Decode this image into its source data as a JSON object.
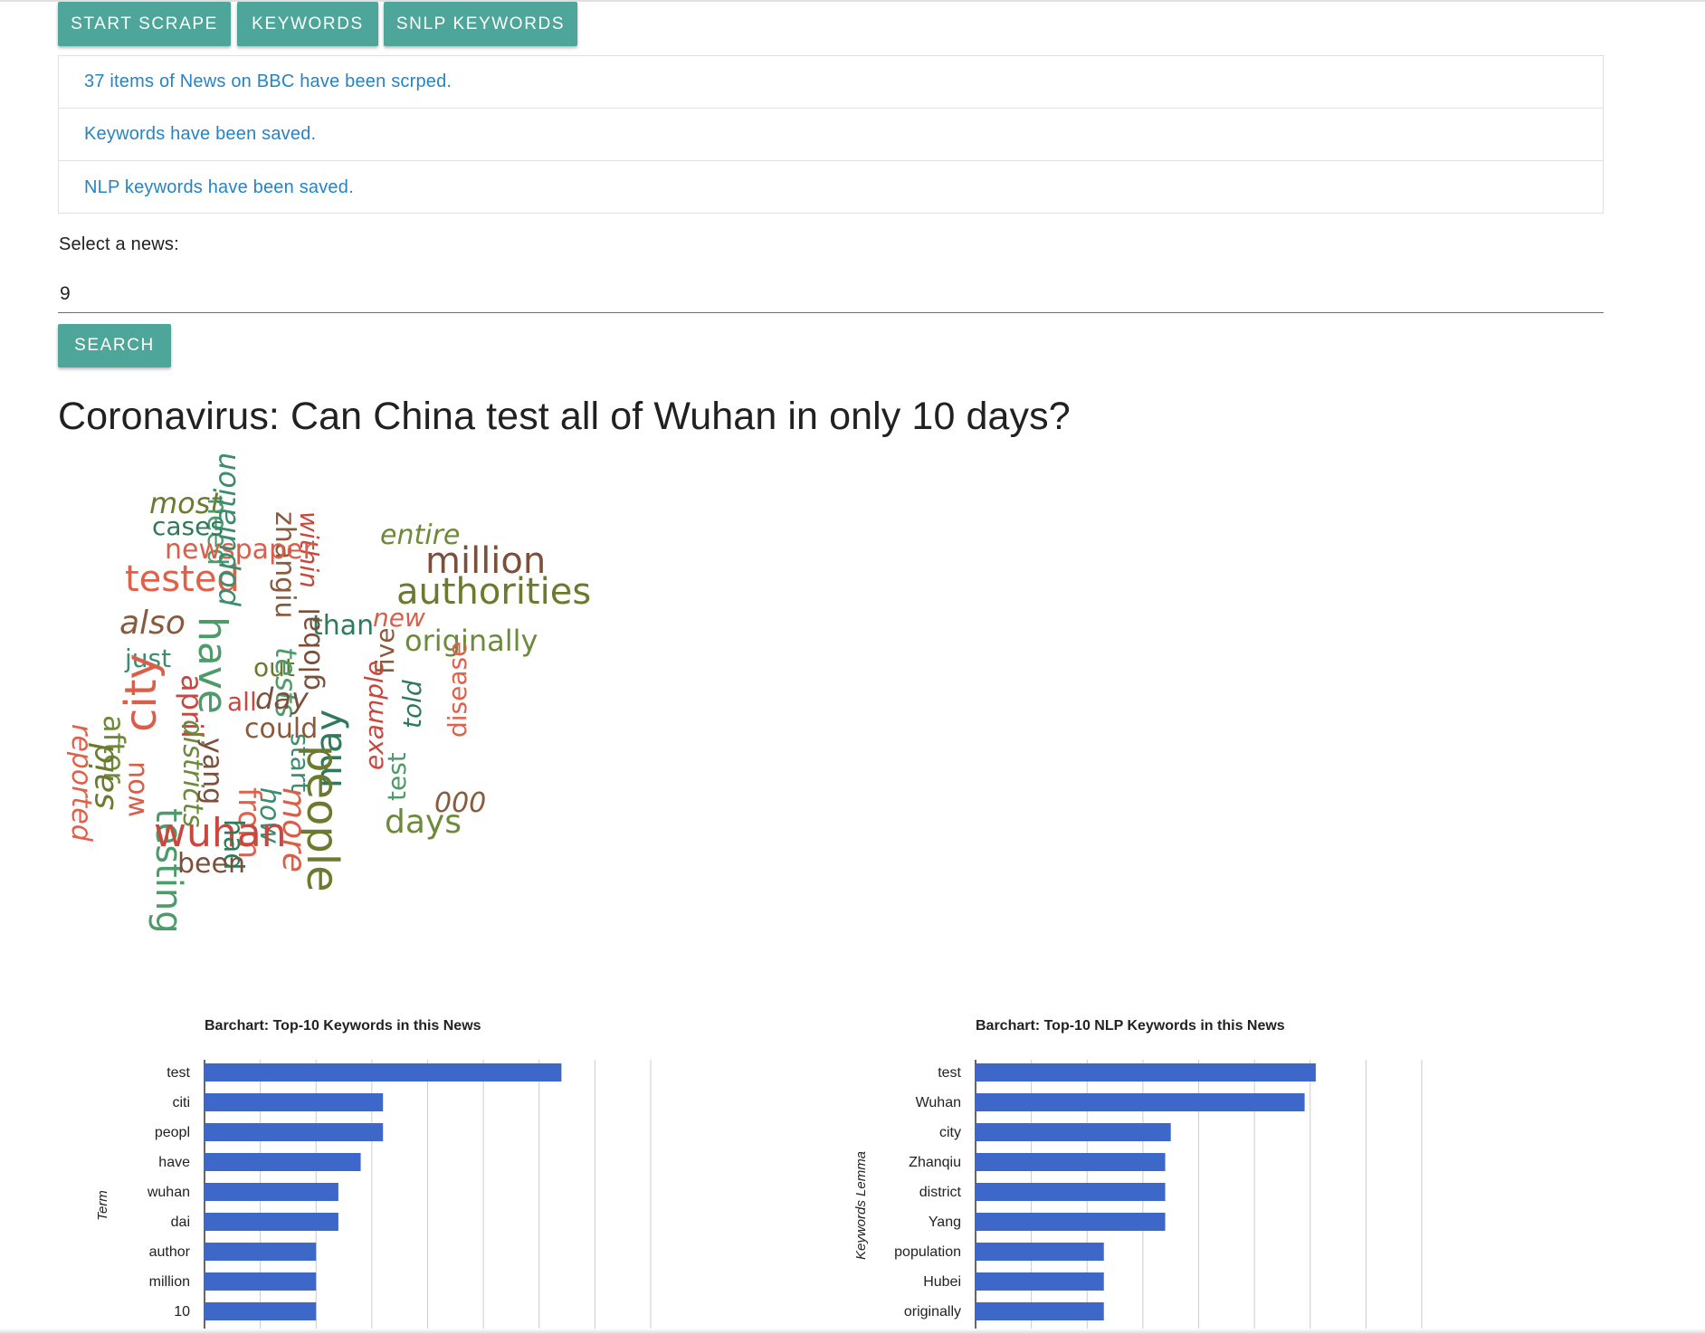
{
  "toolbar": {
    "start_scrape_label": "START SCRAPE",
    "keywords_label": "KEYWORDS",
    "snlp_keywords_label": "SNLP KEYWORDS"
  },
  "status_messages": [
    "37 items of News on BBC have been scrped.",
    "Keywords have been saved.",
    "NLP keywords have been saved."
  ],
  "news_select": {
    "label": "Select a news:",
    "value": "9"
  },
  "search_label": "SEARCH",
  "news_title": "Coronavirus: Can China test all of Wuhan in only 10 days?",
  "word_cloud": {
    "words": [
      "most",
      "need",
      "zhangiu",
      "within",
      "cases",
      "newspaper",
      "entire",
      "million",
      "tested",
      "population",
      "authorities",
      "have",
      "also",
      "april",
      "than",
      "new",
      "originally",
      "global",
      "reported",
      "just",
      "out",
      "tests",
      "five",
      "all",
      "told",
      "city",
      "after",
      "day",
      "disease",
      "start",
      "said",
      "testing",
      "could",
      "example",
      "may",
      "wou",
      "districts",
      "yang",
      "from",
      "how",
      "people",
      "test",
      "000",
      "wuhan",
      "had",
      "more",
      "days",
      "been"
    ]
  },
  "chart_data": [
    {
      "type": "bar",
      "title": "Barchart: Top-10 Keywords in this News",
      "ylabel": "Term",
      "categories": [
        "test",
        "citi",
        "peopl",
        "have",
        "wuhan",
        "dai",
        "author",
        "million",
        "10"
      ],
      "values": [
        16,
        8,
        8,
        7,
        6,
        6,
        5,
        5,
        5
      ],
      "xlim": [
        0,
        20
      ],
      "grid": true,
      "color": "#3d67c9"
    },
    {
      "type": "bar",
      "title": "Barchart: Top-10 NLP Keywords in this News",
      "ylabel": "Keywords Lemma",
      "categories": [
        "test",
        "Wuhan",
        "city",
        "Zhanqiu",
        "district",
        "Yang",
        "population",
        "Hubei",
        "originally"
      ],
      "values": [
        6.1,
        5.9,
        3.5,
        3.4,
        3.4,
        3.4,
        2.3,
        2.3,
        2.3
      ],
      "xlim": [
        0,
        8
      ],
      "grid": true,
      "color": "#3d67c9"
    }
  ],
  "colors": {
    "button": "#4ea59a",
    "link": "#2684c4",
    "bar": "#3d67c9"
  }
}
